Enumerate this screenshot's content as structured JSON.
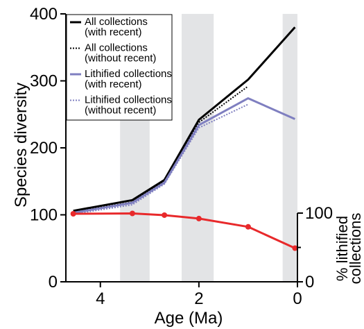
{
  "chart_data": {
    "type": "line",
    "x_axis": {
      "label": "Age (Ma)",
      "range": [
        4.7,
        0
      ],
      "ticks": [
        4,
        2,
        0
      ],
      "reversed": true
    },
    "y_axis": {
      "label": "Species diversity",
      "range": [
        0,
        400
      ],
      "ticks": [
        0,
        100,
        200,
        300,
        400
      ]
    },
    "y2_axis": {
      "label_line1": "% lithified",
      "label_line2": "collections",
      "range": [
        0,
        100
      ],
      "ticks": [
        0,
        100
      ]
    },
    "shaded_intervals_ma": [
      [
        3.6,
        3.0
      ],
      [
        2.35,
        1.7
      ],
      [
        0.3,
        0
      ]
    ],
    "series": [
      {
        "name_line1": "All collections",
        "name_line2": "(with recent)",
        "color": "#000000",
        "dash": "solid",
        "axis": "left",
        "x": [
          4.55,
          3.35,
          2.7,
          2.0,
          1.0,
          0.05
        ],
        "y": [
          106,
          122,
          152,
          242,
          302,
          380
        ]
      },
      {
        "name_line1": "All collections",
        "name_line2": "(without recent)",
        "color": "#000000",
        "dash": "dotted",
        "axis": "left",
        "x": [
          4.55,
          3.35,
          2.7,
          2.0,
          1.0
        ],
        "y": [
          104,
          119,
          150,
          238,
          292
        ]
      },
      {
        "name_line1": "Lithified collections",
        "name_line2": "(with recent)",
        "color": "#7f7fc0",
        "dash": "solid",
        "axis": "left",
        "x": [
          4.55,
          3.35,
          2.7,
          2.0,
          1.0,
          0.05
        ],
        "y": [
          103,
          118,
          148,
          234,
          274,
          243
        ]
      },
      {
        "name_line1": "Lithified collections",
        "name_line2": "(without recent)",
        "color": "#7f7fc0",
        "dash": "dotted",
        "axis": "left",
        "x": [
          4.55,
          3.35,
          2.7,
          2.0,
          1.0
        ],
        "y": [
          101,
          115,
          146,
          230,
          265
        ]
      },
      {
        "color": "#e8292b",
        "dash": "solid",
        "axis": "right",
        "markers": true,
        "x": [
          4.55,
          3.35,
          2.7,
          2.0,
          1.0,
          0.05
        ],
        "y": [
          99,
          99.5,
          97,
          92,
          80,
          49
        ]
      }
    ],
    "grid": false,
    "legend_position": "top-left"
  }
}
